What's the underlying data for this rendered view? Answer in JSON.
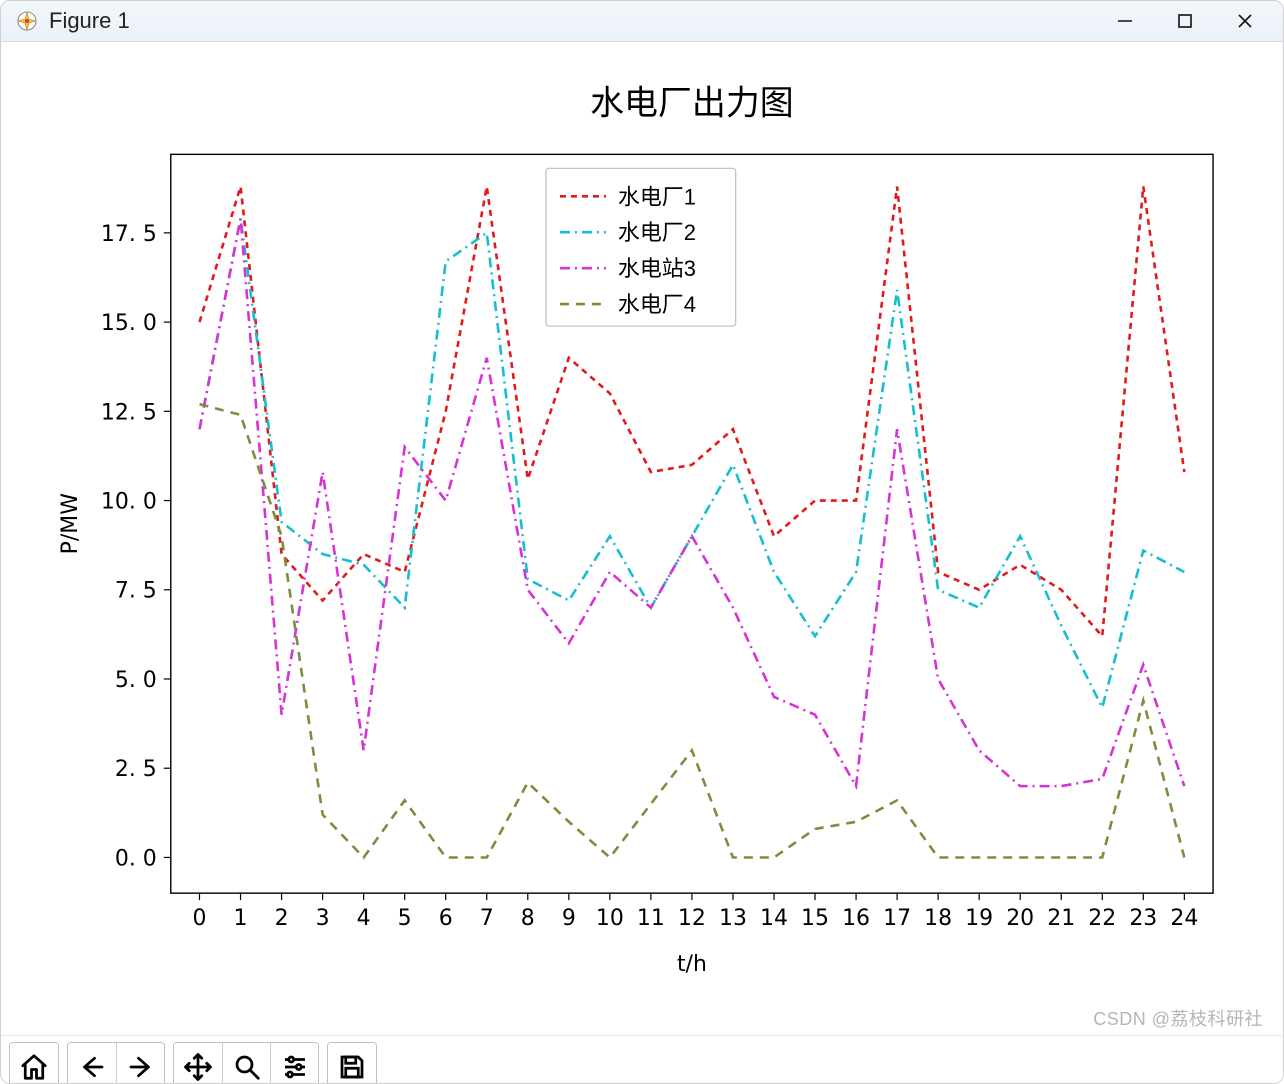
{
  "window": {
    "title": "Figure 1"
  },
  "watermark": "CSDN @荔枝科研社",
  "chart": {
    "type": "line",
    "title": "水电厂出力图",
    "title_fontsize": 34,
    "xlabel": "t/h",
    "ylabel": "P/MW",
    "label_fontsize": 26,
    "tick_fontsize": 22,
    "background_color": "#ffffff",
    "axis_color": "#000000",
    "x_ticks": [
      0,
      1,
      2,
      3,
      4,
      5,
      6,
      7,
      8,
      9,
      10,
      11,
      12,
      13,
      14,
      15,
      16,
      17,
      18,
      19,
      20,
      21,
      22,
      23,
      24
    ],
    "y_ticks": [
      0.0,
      2.5,
      5.0,
      7.5,
      10.0,
      12.5,
      15.0,
      17.5
    ],
    "y_tick_labels": [
      "0. 0",
      "2. 5",
      "5. 0",
      "7. 5",
      "10. 0",
      "12. 5",
      "15. 0",
      "17. 5"
    ],
    "xlim": [
      -0.7,
      24.7
    ],
    "ylim": [
      -1.0,
      19.7
    ],
    "line_width": 2.6,
    "legend": {
      "position": "upper center",
      "border_color": "#bfbfbf",
      "background": "#ffffff",
      "items": [
        {
          "label": "水电厂1",
          "color": "#e31a1c",
          "dash": "6,5"
        },
        {
          "label": "水电厂2",
          "color": "#17becf",
          "dash": "10,5,2,5"
        },
        {
          "label": "水电站3",
          "color": "#d831d8",
          "dash": "10,5,2,5"
        },
        {
          "label": "水电厂4",
          "color": "#7a8f3c",
          "dash": "9,7"
        }
      ]
    },
    "x": [
      0,
      1,
      2,
      3,
      4,
      5,
      6,
      7,
      8,
      9,
      10,
      11,
      12,
      13,
      14,
      15,
      16,
      17,
      18,
      19,
      20,
      21,
      22,
      23,
      24
    ],
    "series": [
      {
        "name": "水电厂1",
        "color": "#e31a1c",
        "dash": "6,5",
        "y": [
          15.0,
          18.8,
          8.5,
          7.2,
          8.5,
          8.0,
          12.5,
          18.8,
          10.6,
          14.0,
          13.0,
          10.8,
          11.0,
          12.0,
          9.0,
          10.0,
          10.0,
          18.8,
          8.0,
          7.5,
          8.2,
          7.5,
          6.2,
          18.8,
          10.8
        ]
      },
      {
        "name": "水电厂2",
        "color": "#17becf",
        "dash": "10,5,2,5",
        "y": [
          12.0,
          17.9,
          9.4,
          8.5,
          8.2,
          7.0,
          16.7,
          17.5,
          7.8,
          7.2,
          9.0,
          7.0,
          9.0,
          11.0,
          8.0,
          6.2,
          8.0,
          15.9,
          7.5,
          7.0,
          9.0,
          6.5,
          4.2,
          8.6,
          8.0
        ]
      },
      {
        "name": "水电站3",
        "color": "#d831d8",
        "dash": "10,5,2,5",
        "y": [
          12.0,
          17.9,
          4.0,
          10.8,
          3.0,
          11.5,
          10.0,
          14.0,
          7.5,
          6.0,
          8.0,
          7.0,
          9.0,
          7.0,
          4.5,
          4.0,
          2.0,
          12.0,
          5.0,
          3.0,
          2.0,
          2.0,
          2.2,
          5.4,
          2.0
        ]
      },
      {
        "name": "水电厂4",
        "color": "#7a8f3c",
        "dash": "9,7",
        "y": [
          12.7,
          12.4,
          9.0,
          1.2,
          0.0,
          1.6,
          0.0,
          0.0,
          2.1,
          1.0,
          0.0,
          1.5,
          3.0,
          0.0,
          0.0,
          0.8,
          1.0,
          1.6,
          0.0,
          0.0,
          0.0,
          0.0,
          0.0,
          4.4,
          0.0
        ]
      }
    ]
  }
}
